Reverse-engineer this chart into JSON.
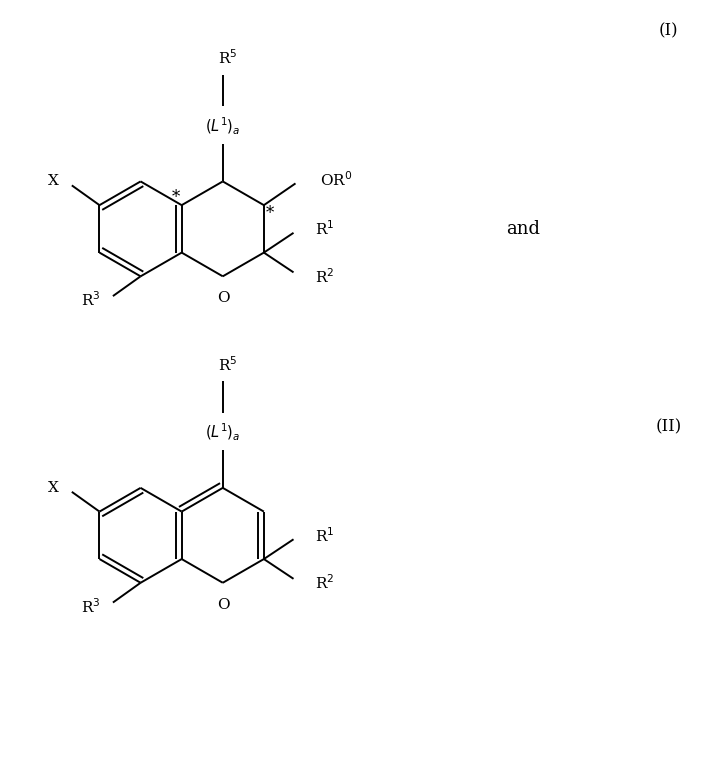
{
  "bg_color": "#ffffff",
  "line_color": "#000000",
  "text_color": "#000000",
  "figsize": [
    7.28,
    7.82
  ],
  "dpi": 100,
  "label_I": "(I)",
  "label_II": "(II)",
  "label_and": "and",
  "lw": 1.4,
  "fontsize_label": 13,
  "fontsize_sub": 11,
  "fontsize_roman": 12
}
